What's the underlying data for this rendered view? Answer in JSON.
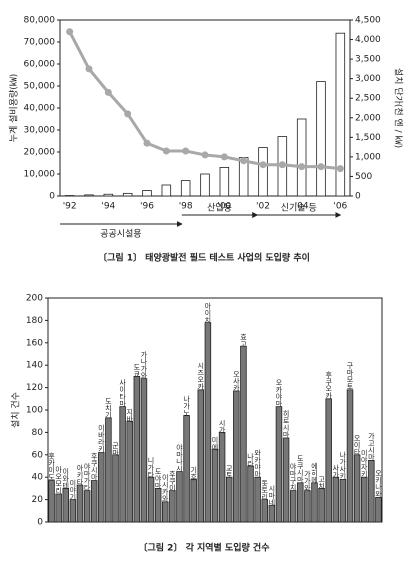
{
  "chart_data": [
    {
      "type": "bar",
      "categories": [
        "'92",
        null,
        "'94",
        null,
        "'96",
        null,
        "'98",
        null,
        "'00",
        null,
        "'02",
        null,
        "'04",
        null,
        "'06"
      ],
      "series": [
        {
          "type": "bar",
          "color": "#ffffff",
          "values": [
            200,
            500,
            800,
            1200,
            2500,
            5000,
            7000,
            10000,
            13000,
            17500,
            22000,
            27000,
            35000,
            52000,
            74000
          ]
        },
        {
          "type": "line",
          "axis": "y2",
          "color": "#a8a8a8",
          "values": [
            4200,
            3250,
            2650,
            2100,
            1350,
            1150,
            1150,
            1050,
            1000,
            900,
            800,
            800,
            750,
            750,
            700
          ]
        }
      ],
      "ylim": [
        0,
        80000
      ],
      "yticks": [
        0,
        {
          "value": 10000,
          "label": "10,000"
        },
        {
          "value": 20000,
          "label": "20,000"
        },
        {
          "value": 30000,
          "label": "30,000"
        },
        {
          "value": 40000,
          "label": "40,000"
        },
        {
          "value": 50000,
          "label": "50,000"
        },
        {
          "value": 60000,
          "label": "60,000"
        },
        {
          "value": 70000,
          "label": "70,000"
        },
        {
          "value": 80000,
          "label": "80,000"
        }
      ],
      "y2lim": [
        0,
        4500
      ],
      "y2ticks": [
        0,
        500,
        {
          "value": 1000,
          "label": "1,000"
        },
        {
          "value": 1500,
          "label": "1,500"
        },
        {
          "value": 2000,
          "label": "2,000"
        },
        {
          "value": 2500,
          "label": "2,500"
        },
        {
          "value": 3000,
          "label": "3,000"
        },
        {
          "value": 3500,
          "label": "3,500"
        },
        {
          "value": 4000,
          "label": "4,000"
        },
        {
          "value": 4500,
          "label": "4,500"
        }
      ],
      "ylabel": "누계 설비용량(㎾)",
      "y2label": "설치 단가(천 엔 / ㎾)",
      "annotations": [
        "공공시설용",
        "산업용",
        "신기술 등"
      ],
      "caption": "〔그림 1〕 태양광발전 필드 테스트 사업의 도입량 추이"
    },
    {
      "type": "bar",
      "categories": [
        "홋카이도",
        "아오모리",
        "이와테",
        "미야기",
        "아키타",
        "야마가타",
        "후쿠시마",
        "이바라키",
        "도치기",
        "군마",
        "사이타마",
        "지바",
        "도쿄",
        "가나가와",
        "니가타",
        "도야마",
        "이시카와",
        "후쿠이",
        "야마나시",
        "나가노",
        "기후",
        "시즈오카",
        "아이치",
        "미에",
        "시가",
        "교토",
        "오사카",
        "효고",
        "나라",
        "와카야마",
        "돗토리",
        "시마네",
        "오카야마",
        "히로시마",
        "야마구치",
        "도쿠시마",
        "가가와",
        "에히메",
        "고치",
        "후쿠오카",
        "사가",
        "나가사키",
        "구마모토",
        "오이타",
        "미야자키",
        "가고시마",
        "오키나와"
      ],
      "values": [
        37,
        25,
        30,
        20,
        33,
        28,
        37,
        62,
        93,
        60,
        103,
        90,
        130,
        128,
        40,
        30,
        18,
        28,
        45,
        95,
        38,
        118,
        178,
        65,
        80,
        40,
        117,
        157,
        50,
        40,
        20,
        15,
        103,
        75,
        28,
        35,
        28,
        35,
        30,
        110,
        40,
        38,
        118,
        60,
        40,
        55,
        22
      ],
      "color": "#777777",
      "ylim": [
        0,
        200
      ],
      "yticks": [
        0,
        20,
        40,
        60,
        80,
        100,
        120,
        140,
        160,
        180,
        200
      ],
      "ylabel": "설치 건수",
      "caption": "〔그림 2〕 각 지역별 도입량 건수"
    }
  ]
}
